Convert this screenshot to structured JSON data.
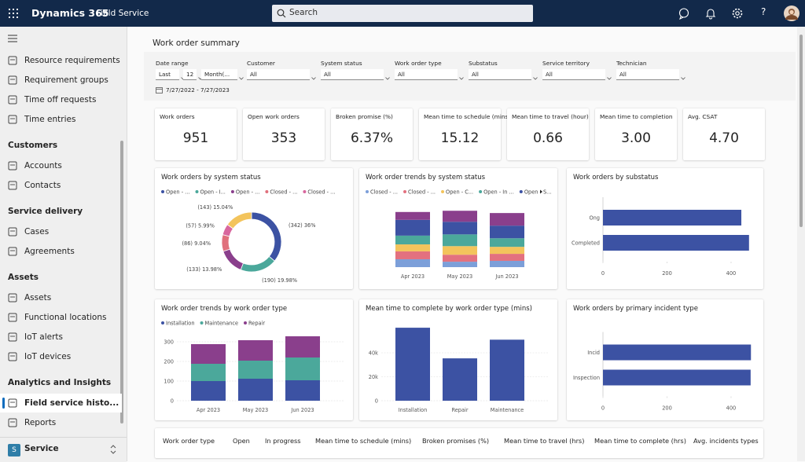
{
  "topbar": {
    "app_name": "Dynamics 365",
    "area": "Field Service",
    "search_placeholder": "Search",
    "help": "?"
  },
  "sidebar": {
    "top_items": [
      "Resource requirements",
      "Requirement groups",
      "Time off requests",
      "Time entries"
    ],
    "groups": [
      {
        "title": "Customers",
        "items": [
          "Accounts",
          "Contacts"
        ]
      },
      {
        "title": "Service delivery",
        "items": [
          "Cases",
          "Agreements"
        ]
      },
      {
        "title": "Assets",
        "items": [
          "Assets",
          "Functional locations",
          "IoT alerts",
          "IoT devices"
        ]
      },
      {
        "title": "Analytics and Insights",
        "items": [
          "Field service histo...",
          "Reports"
        ],
        "selected_index": 0
      }
    ],
    "area_switcher": {
      "initial": "S",
      "name": "Service"
    }
  },
  "page_title": "Work order summary",
  "filters": [
    {
      "label": "Date range",
      "fields": [
        "Last",
        "12",
        "Month(..."
      ]
    },
    {
      "label": "Customer",
      "fields": [
        "All"
      ]
    },
    {
      "label": "System status",
      "fields": [
        "All"
      ]
    },
    {
      "label": "Work order type",
      "fields": [
        "All"
      ]
    },
    {
      "label": "Substatus",
      "fields": [
        "All"
      ]
    },
    {
      "label": "Service territory",
      "fields": [
        "All"
      ]
    },
    {
      "label": "Technician",
      "fields": [
        "All"
      ]
    }
  ],
  "date_range_text": "7/27/2022 - 7/27/2023",
  "kpis": [
    {
      "label": "Work orders",
      "value": "951"
    },
    {
      "label": "Open work orders",
      "value": "353"
    },
    {
      "label": "Broken promise (%)",
      "value": "6.37%"
    },
    {
      "label": "Mean time to schedule (mins)",
      "value": "15.12"
    },
    {
      "label": "Mean time to travel (hour)",
      "value": "0.66"
    },
    {
      "label": "Mean time to completion",
      "value": "3.00"
    },
    {
      "label": "Avg. CSAT",
      "value": "4.70"
    }
  ],
  "chart_data": [
    {
      "type": "donut",
      "title": "Work orders by system status",
      "legend": [
        {
          "name": "Open - ...",
          "color": "#3c52a3"
        },
        {
          "name": "Open - I...",
          "color": "#4ba89b"
        },
        {
          "name": "Open - ...",
          "color": "#8a3f8c"
        },
        {
          "name": "Closed - ...",
          "color": "#e0707c"
        },
        {
          "name": "Closed - ...",
          "color": "#d8679e"
        }
      ],
      "values": [
        342,
        190,
        133,
        86,
        57,
        143
      ],
      "value_labels": [
        "(342) 36%",
        "(190) 19.98%",
        "(133) 13.98%",
        "(86) 9.04%",
        "(57) 5.99%",
        "(143) 15.04%"
      ],
      "colors": [
        "#3c52a3",
        "#4ba89b",
        "#8a3f8c",
        "#e0707c",
        "#d8679e",
        "#f3c45c"
      ]
    },
    {
      "type": "stacked_bar",
      "title": "Work order trends by system status",
      "categories": [
        "Apr 2023",
        "May 2023",
        "Jun 2023"
      ],
      "series": [
        {
          "name": "Closed - ...",
          "color": "#7c9fd9",
          "values": [
            45,
            31,
            36
          ]
        },
        {
          "name": "Closed - ...",
          "color": "#e3717f",
          "values": [
            45,
            40,
            40
          ]
        },
        {
          "name": "Open - C...",
          "color": "#f3c45c",
          "values": [
            40,
            49,
            40
          ]
        },
        {
          "name": "Open - In ...",
          "color": "#4ba89b",
          "values": [
            50,
            67,
            49
          ]
        },
        {
          "name": "Open - S...",
          "color": "#3c52a3",
          "values": [
            90,
            72,
            72
          ]
        },
        {
          "name": null,
          "color": "#8a3f8c",
          "values": [
            45,
            63,
            72
          ]
        }
      ],
      "ylim": [
        0,
        350
      ]
    },
    {
      "type": "hbar",
      "title": "Work orders by substatus",
      "categories": [
        "Ong",
        "Completed"
      ],
      "values": [
        432,
        456
      ],
      "color": "#3c52a3",
      "xlim": [
        0,
        470
      ],
      "xticks": [
        0,
        200,
        400
      ]
    },
    {
      "type": "stacked_bar",
      "title": "Work order trends by work order type",
      "categories": [
        "Apr 2023",
        "May 2023",
        "Jun 2023"
      ],
      "series": [
        {
          "name": "Installation",
          "color": "#3c52a3",
          "values": [
            100,
            112,
            104
          ]
        },
        {
          "name": "Maintenance",
          "color": "#4ba89b",
          "values": [
            88,
            92,
            116
          ]
        },
        {
          "name": "Repair",
          "color": "#8a3f8c",
          "values": [
            100,
            104,
            108
          ]
        }
      ],
      "ylim": [
        0,
        350
      ],
      "yticks": [
        0,
        100,
        200,
        300
      ],
      "grid": true
    },
    {
      "type": "bar",
      "title": "Mean time to complete by work order type (mins)",
      "categories": [
        "Installation",
        "Repair",
        "Maintenance"
      ],
      "values": [
        61000,
        35400,
        51000
      ],
      "color": "#3c52a3",
      "ylim": [
        0,
        65000
      ],
      "yticks": [
        0,
        {
          "value": 20000,
          "label": "20k"
        },
        {
          "value": 40000,
          "label": "40k"
        }
      ],
      "grid": true
    },
    {
      "type": "hbar",
      "title": "Work orders by primary incident type",
      "categories": [
        "Incid",
        "Inspection"
      ],
      "values": [
        462,
        461
      ],
      "color": "#3c52a3",
      "xlim": [
        0,
        470
      ],
      "xticks": [
        0,
        200,
        400
      ]
    }
  ],
  "table": {
    "columns": [
      "Work order type",
      "Open",
      "In progress",
      "Mean time to schedule (mins)",
      "Broken promises (%)",
      "Mean time to travel (hrs)",
      "Mean time to complete (hrs)",
      "Avg. incidents types"
    ]
  }
}
